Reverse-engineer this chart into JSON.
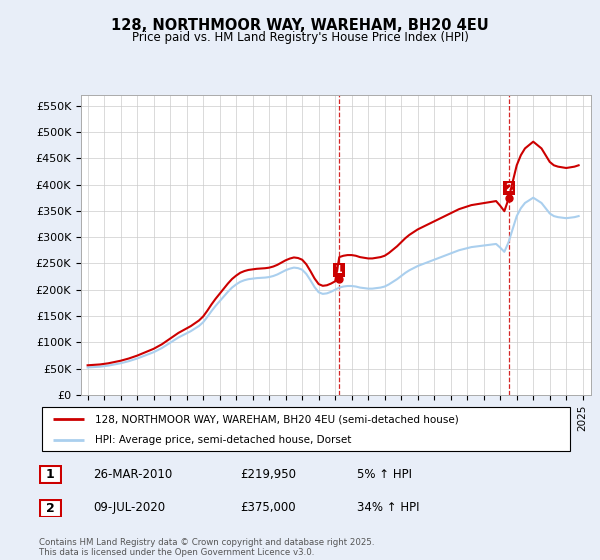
{
  "title": "128, NORTHMOOR WAY, WAREHAM, BH20 4EU",
  "subtitle": "Price paid vs. HM Land Registry's House Price Index (HPI)",
  "ylabel_ticks": [
    "£0",
    "£50K",
    "£100K",
    "£150K",
    "£200K",
    "£250K",
    "£300K",
    "£350K",
    "£400K",
    "£450K",
    "£500K",
    "£550K"
  ],
  "ytick_values": [
    0,
    50000,
    100000,
    150000,
    200000,
    250000,
    300000,
    350000,
    400000,
    450000,
    500000,
    550000
  ],
  "ylim": [
    0,
    570000
  ],
  "xlim_start": 1994.6,
  "xlim_end": 2025.5,
  "xtick_years": [
    1995,
    1996,
    1997,
    1998,
    1999,
    2000,
    2001,
    2002,
    2003,
    2004,
    2005,
    2006,
    2007,
    2008,
    2009,
    2010,
    2011,
    2012,
    2013,
    2014,
    2015,
    2016,
    2017,
    2018,
    2019,
    2020,
    2021,
    2022,
    2023,
    2024,
    2025
  ],
  "sale1_year": 2010.23,
  "sale1_price": 219950,
  "sale2_year": 2020.52,
  "sale2_price": 375000,
  "hpi_color": "#aacfee",
  "price_color": "#cc0000",
  "sale_vline_color": "#cc0000",
  "background_color": "#e8eef8",
  "plot_bg_color": "#ffffff",
  "grid_color": "#cccccc",
  "legend1_text": "128, NORTHMOOR WAY, WAREHAM, BH20 4EU (semi-detached house)",
  "legend2_text": "HPI: Average price, semi-detached house, Dorset",
  "annotation1": [
    "1",
    "26-MAR-2010",
    "£219,950",
    "5% ↑ HPI"
  ],
  "annotation2": [
    "2",
    "09-JUL-2020",
    "£375,000",
    "34% ↑ HPI"
  ],
  "footer": "Contains HM Land Registry data © Crown copyright and database right 2025.\nThis data is licensed under the Open Government Licence v3.0.",
  "hpi_data_years": [
    1995.0,
    1995.25,
    1995.5,
    1995.75,
    1996.0,
    1996.25,
    1996.5,
    1996.75,
    1997.0,
    1997.25,
    1997.5,
    1997.75,
    1998.0,
    1998.25,
    1998.5,
    1998.75,
    1999.0,
    1999.25,
    1999.5,
    1999.75,
    2000.0,
    2000.25,
    2000.5,
    2000.75,
    2001.0,
    2001.25,
    2001.5,
    2001.75,
    2002.0,
    2002.25,
    2002.5,
    2002.75,
    2003.0,
    2003.25,
    2003.5,
    2003.75,
    2004.0,
    2004.25,
    2004.5,
    2004.75,
    2005.0,
    2005.25,
    2005.5,
    2005.75,
    2006.0,
    2006.25,
    2006.5,
    2006.75,
    2007.0,
    2007.25,
    2007.5,
    2007.75,
    2008.0,
    2008.25,
    2008.5,
    2008.75,
    2009.0,
    2009.25,
    2009.5,
    2009.75,
    2010.0,
    2010.25,
    2010.5,
    2010.75,
    2011.0,
    2011.25,
    2011.5,
    2011.75,
    2012.0,
    2012.25,
    2012.5,
    2012.75,
    2013.0,
    2013.25,
    2013.5,
    2013.75,
    2014.0,
    2014.25,
    2014.5,
    2014.75,
    2015.0,
    2015.25,
    2015.5,
    2015.75,
    2016.0,
    2016.25,
    2016.5,
    2016.75,
    2017.0,
    2017.25,
    2017.5,
    2017.75,
    2018.0,
    2018.25,
    2018.5,
    2018.75,
    2019.0,
    2019.25,
    2019.5,
    2019.75,
    2020.0,
    2020.25,
    2020.5,
    2020.75,
    2021.0,
    2021.25,
    2021.5,
    2021.75,
    2022.0,
    2022.25,
    2022.5,
    2022.75,
    2023.0,
    2023.25,
    2023.5,
    2023.75,
    2024.0,
    2024.25,
    2024.5,
    2024.75
  ],
  "hpi_data_values": [
    52000,
    52500,
    53000,
    53500,
    54500,
    55500,
    57000,
    58500,
    60000,
    62000,
    64000,
    66500,
    69000,
    72000,
    75000,
    78000,
    81000,
    85000,
    89000,
    94000,
    99000,
    104000,
    109000,
    113000,
    117000,
    121000,
    126000,
    131000,
    138000,
    148000,
    159000,
    169000,
    178000,
    187000,
    196000,
    204000,
    210000,
    215000,
    218000,
    220000,
    221000,
    222000,
    222500,
    223000,
    224000,
    226000,
    229000,
    233000,
    237000,
    240000,
    242000,
    241000,
    238000,
    230000,
    218000,
    205000,
    195000,
    192000,
    193000,
    196000,
    200000,
    204000,
    206000,
    207000,
    207000,
    206000,
    204000,
    203000,
    202000,
    202000,
    203000,
    204000,
    206000,
    210000,
    215000,
    220000,
    226000,
    232000,
    237000,
    241000,
    245000,
    248000,
    251000,
    254000,
    257000,
    260000,
    263000,
    266000,
    269000,
    272000,
    275000,
    277000,
    279000,
    281000,
    282000,
    283000,
    284000,
    285000,
    286000,
    287000,
    280000,
    272000,
    290000,
    315000,
    340000,
    355000,
    365000,
    370000,
    375000,
    370000,
    365000,
    355000,
    345000,
    340000,
    338000,
    337000,
    336000,
    337000,
    338000,
    340000
  ]
}
